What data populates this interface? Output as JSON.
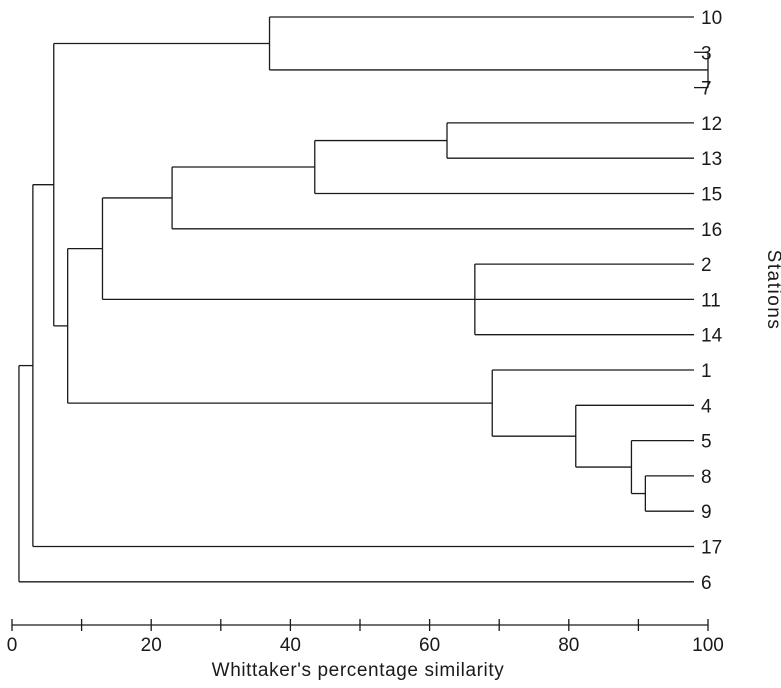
{
  "chart_data": {
    "type": "dendrogram",
    "title": "",
    "xlabel": "Whittaker's percentage similarity",
    "ylabel": "Stations",
    "xlim": [
      0,
      100
    ],
    "x_ticks": [
      0,
      10,
      20,
      30,
      40,
      50,
      60,
      70,
      80,
      90,
      100
    ],
    "x_tick_labels": [
      "0",
      "20",
      "40",
      "60",
      "80",
      "100"
    ],
    "leaves": [
      "10",
      "3",
      "7",
      "12",
      "13",
      "15",
      "16",
      "2",
      "11",
      "14",
      "1",
      "4",
      "5",
      "8",
      "9",
      "17",
      "6"
    ],
    "merges": [
      {
        "id": "m3_7",
        "children": [
          "3",
          "7"
        ],
        "similarity": 100
      },
      {
        "id": "m8_9",
        "children": [
          "8",
          "9"
        ],
        "similarity": 91
      },
      {
        "id": "m5_89",
        "children": [
          "5",
          "m8_9"
        ],
        "similarity": 89
      },
      {
        "id": "m4_589",
        "children": [
          "4",
          "m5_89"
        ],
        "similarity": 81
      },
      {
        "id": "m1_4589",
        "children": [
          "1",
          "m4_589"
        ],
        "similarity": 69
      },
      {
        "id": "m2_11_14",
        "children": [
          "2",
          "11",
          "14"
        ],
        "similarity": 66.5
      },
      {
        "id": "m12_13",
        "children": [
          "12",
          "13"
        ],
        "similarity": 62.5
      },
      {
        "id": "m1213_15",
        "children": [
          "m12_13",
          "15"
        ],
        "similarity": 43.5
      },
      {
        "id": "m10_37",
        "children": [
          "10",
          "m3_7"
        ],
        "similarity": 37
      },
      {
        "id": "m_16",
        "children": [
          "m1213_15",
          "16"
        ],
        "similarity": 23
      },
      {
        "id": "m_2grp",
        "children": [
          "m_16",
          "m2_11_14"
        ],
        "similarity": 13
      },
      {
        "id": "m_1grp",
        "children": [
          "m_2grp",
          "m1_4589"
        ],
        "similarity": 8
      },
      {
        "id": "m_10grp",
        "children": [
          "m10_37",
          "m_1grp"
        ],
        "similarity": 6
      },
      {
        "id": "m_17",
        "children": [
          "m_10grp",
          "17"
        ],
        "similarity": 3
      },
      {
        "id": "m_root",
        "children": [
          "m_17",
          "6"
        ],
        "similarity": 1
      }
    ]
  }
}
